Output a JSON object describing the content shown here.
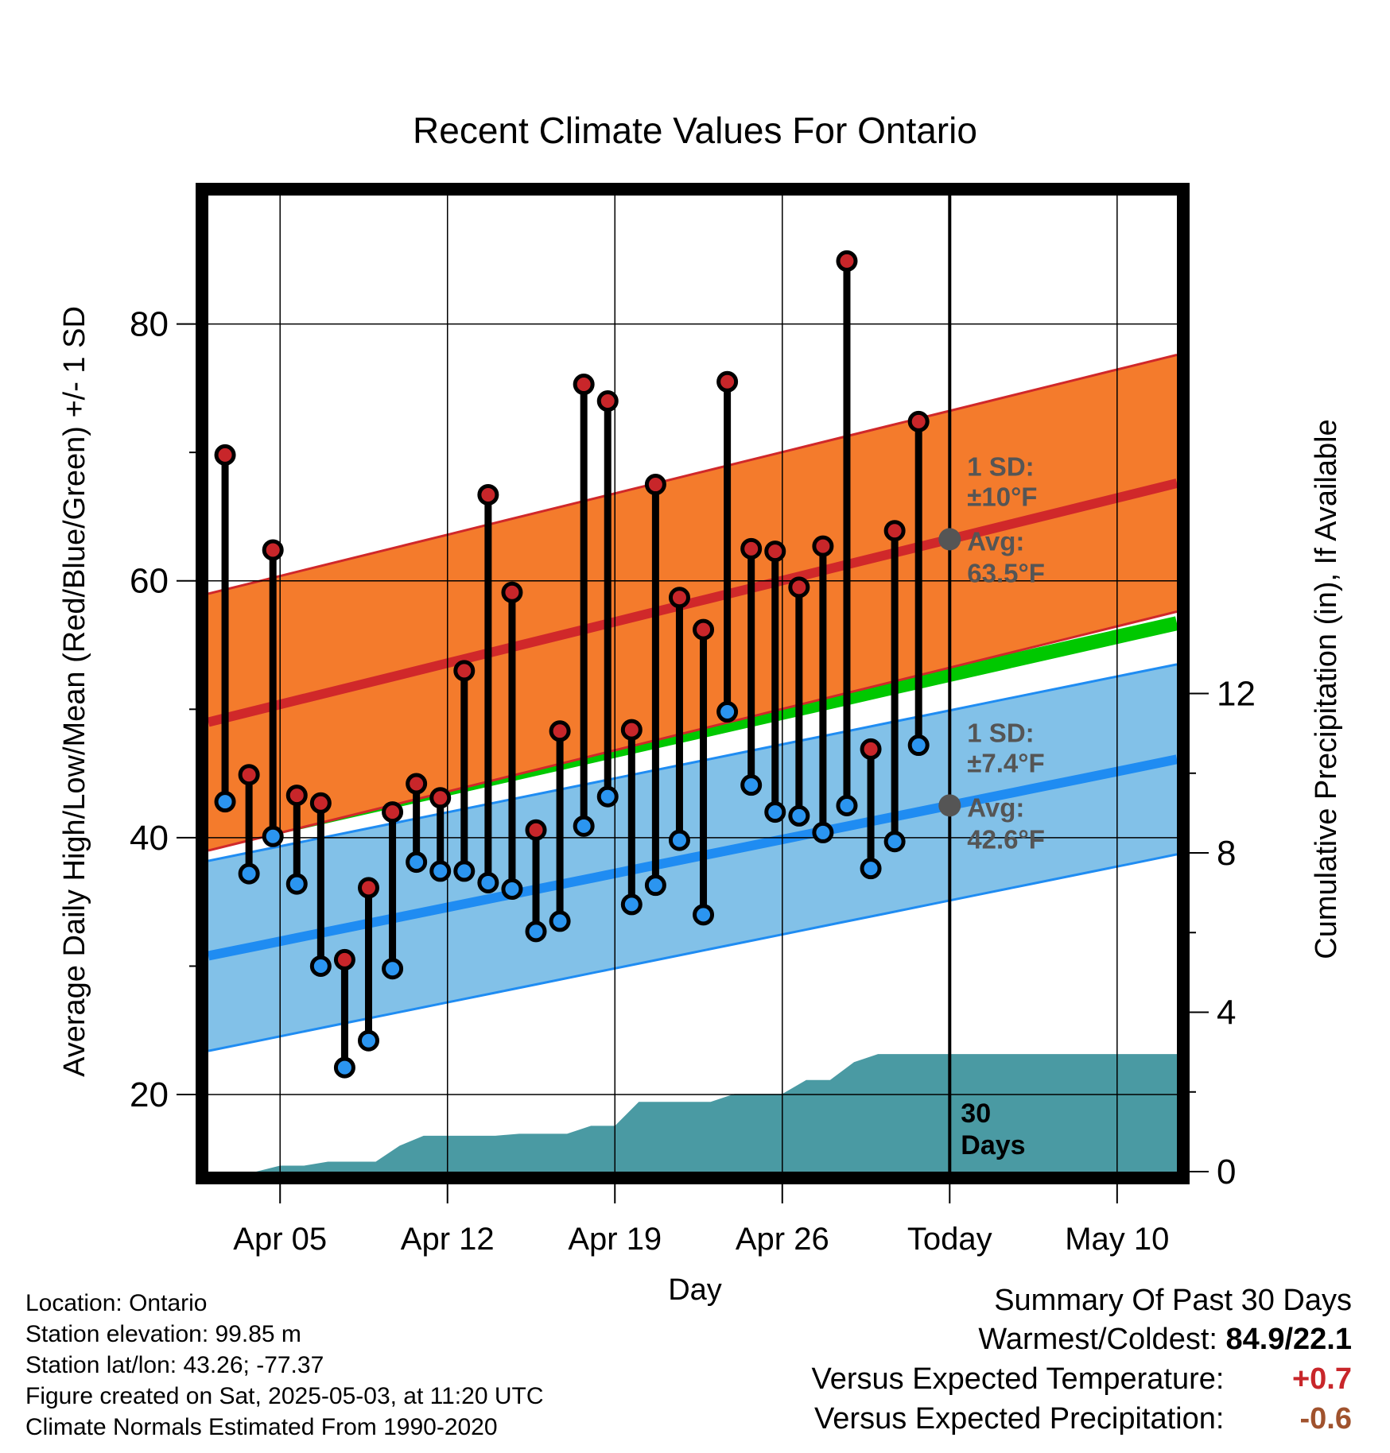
{
  "chart_data": {
    "type": "line",
    "title": "Recent Climate Values For Ontario",
    "xlabel": "Day",
    "ylabel_left": "Average Daily High/Low/Mean (Red/Blue/Green) +/- 1 SD",
    "ylabel_right": "Cumulative Precipitation (in), If Available",
    "x_tick_labels": [
      "Apr 05",
      "Apr 12",
      "Apr 19",
      "Apr 26",
      "Today",
      "May 10"
    ],
    "x_tick_days": [
      3,
      10,
      17,
      24,
      31,
      38
    ],
    "xlim_days": [
      0,
      40.5
    ],
    "ylim_left": [
      14,
      90
    ],
    "yticks_left": [
      20,
      40,
      60,
      80
    ],
    "ylim_right": [
      0,
      24.5
    ],
    "yticks_right": [
      0,
      4,
      8,
      12
    ],
    "grid": true,
    "today_day": 31,
    "normals": {
      "high_avg": [
        49.0,
        67.6
      ],
      "high_sd": 10,
      "low_avg": [
        30.8,
        46.1
      ],
      "low_sd": 7.4,
      "mean_avg": [
        39.6,
        56.7
      ]
    },
    "observations": {
      "days": [
        0.7,
        1.7,
        2.7,
        3.7,
        4.7,
        5.7,
        6.7,
        7.7,
        8.7,
        9.7,
        10.7,
        11.7,
        12.7,
        13.7,
        14.7,
        15.7,
        16.7,
        17.7,
        18.7,
        19.7,
        20.7,
        21.7,
        22.7,
        23.7,
        24.7,
        25.7,
        26.7,
        27.7,
        28.7,
        29.7
      ],
      "highs": [
        69.8,
        44.9,
        62.4,
        43.3,
        42.7,
        30.5,
        36.1,
        42.0,
        44.2,
        43.1,
        53.0,
        66.7,
        59.1,
        40.6,
        48.3,
        75.3,
        74.0,
        48.4,
        67.5,
        58.7,
        56.2,
        75.5,
        62.5,
        62.3,
        59.5,
        62.7,
        84.9,
        46.9,
        63.9,
        72.4
      ],
      "lows": [
        42.8,
        37.2,
        40.1,
        36.4,
        30.0,
        22.1,
        24.2,
        29.8,
        38.1,
        37.4,
        37.4,
        36.5,
        36.0,
        32.7,
        33.5,
        40.9,
        43.2,
        34.8,
        36.3,
        39.8,
        34.0,
        49.8,
        44.1,
        42.0,
        41.7,
        40.4,
        42.5,
        37.6,
        39.7,
        47.2
      ]
    },
    "precip": {
      "days": [
        0,
        2,
        3,
        4,
        5,
        6,
        7,
        8,
        9,
        10,
        11,
        12,
        13,
        14,
        15,
        16,
        17,
        18,
        19,
        20,
        21,
        22,
        23,
        24,
        25,
        26,
        27,
        28,
        29,
        30,
        40.5
      ],
      "cumulative": [
        0,
        0,
        0.15,
        0.15,
        0.25,
        0.25,
        0.25,
        0.65,
        0.9,
        0.9,
        0.9,
        0.9,
        0.95,
        0.95,
        0.95,
        1.15,
        1.15,
        1.75,
        1.75,
        1.75,
        1.75,
        1.95,
        1.95,
        1.95,
        2.3,
        2.3,
        2.75,
        2.95,
        2.95,
        2.95,
        2.95
      ]
    },
    "annotations": {
      "high_sd_line1": "1 SD:",
      "high_sd_line2": "±10°F",
      "high_avg_line1": "Avg:",
      "high_avg_line2": "63.5°F",
      "low_sd_line1": "1 SD:",
      "low_sd_line2": "±7.4°F",
      "low_avg_line1": "Avg:",
      "low_avg_line2": "42.6°F",
      "period_line1": "30",
      "period_line2": "Days"
    },
    "colors": {
      "high_band": "#f47b2c",
      "high_line": "#d0282a",
      "low_band": "#82c1e8",
      "low_line": "#1f8cf2",
      "mean_line": "#00c800",
      "precip": "#4a9aa3",
      "high_dot": "#c8262a",
      "low_dot": "#2b95f0",
      "annotation": "#555555"
    }
  },
  "footer": {
    "location": "Location: Ontario",
    "elevation": "Station elevation: 99.85 m",
    "latlon": "Station lat/lon: 43.26; -77.37",
    "created": "Figure created on Sat, 2025-05-03, at 11:20 UTC",
    "normals": "Climate Normals Estimated From 1990-2020"
  },
  "summary": {
    "heading": "Summary Of Past 30 Days",
    "warm_cold_label": "Warmest/Coldest:",
    "warm_cold_value": "84.9/22.1",
    "temp_label": "Versus Expected Temperature:",
    "temp_value": "+0.7",
    "temp_color": "#c8262a",
    "precip_label": "Versus Expected Precipitation:",
    "precip_value": "-0.6",
    "precip_color": "#a0522d"
  }
}
